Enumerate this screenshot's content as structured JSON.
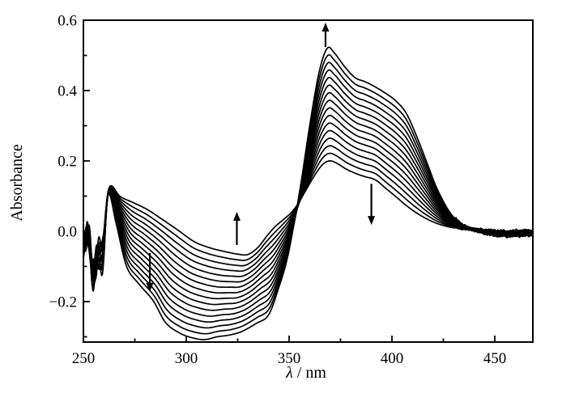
{
  "figure": {
    "background": "#ffffff",
    "line_color": "#000000",
    "kind": "uv-vis absorbance spectra family (time-evolution with arrows)"
  },
  "axes": {
    "x": {
      "label_symbol": "λ",
      "label_rest": " / nm",
      "min": 250,
      "max": 468.5,
      "major_ticks": [
        {
          "v": 250,
          "label": "250"
        },
        {
          "v": 300,
          "label": "300"
        },
        {
          "v": 350,
          "label": "350"
        },
        {
          "v": 400,
          "label": "400"
        },
        {
          "v": 450,
          "label": "450"
        }
      ],
      "minor_ticks": [
        275,
        325,
        375,
        425
      ]
    },
    "y": {
      "label": "Absorbance",
      "min": -0.315,
      "max": 0.6,
      "major_ticks": [
        {
          "v": 0.6,
          "label": "0.6"
        },
        {
          "v": 0.4,
          "label": "0.4"
        },
        {
          "v": 0.2,
          "label": "0.2"
        },
        {
          "v": 0.0,
          "label": "0.0"
        },
        {
          "v": -0.2,
          "label": "−0.2"
        }
      ],
      "minor_ticks": [
        0.5,
        0.3,
        0.1,
        -0.1,
        -0.3
      ]
    }
  },
  "chart_data": {
    "type": "line",
    "title": "",
    "xlabel": "λ / nm",
    "ylabel": "Absorbance",
    "xlim": [
      250,
      468.5
    ],
    "ylim": [
      -0.315,
      0.6
    ],
    "grid": false,
    "legend": false,
    "n_curves": 16,
    "series_model": {
      "description": "16 difference spectra; curve i (t=i/15) passes through key points whose (nm, A) values are linearly interpolated between first and last spectra, producing a slanted crossing zone near 338-352 nm",
      "key_points_first": [
        [
          250,
          -0.03
        ],
        [
          252.5,
          0.012
        ],
        [
          254.5,
          -0.088
        ],
        [
          257,
          -0.04
        ],
        [
          259.5,
          -0.02
        ],
        [
          262.5,
          0.124
        ],
        [
          268,
          0.098
        ],
        [
          274,
          0.082
        ],
        [
          281,
          0.062
        ],
        [
          288,
          0.035
        ],
        [
          296,
          0.003
        ],
        [
          304,
          -0.03
        ],
        [
          312,
          -0.048
        ],
        [
          319,
          -0.058
        ],
        [
          325,
          -0.065
        ],
        [
          330,
          -0.066
        ],
        [
          335,
          -0.045
        ],
        [
          339,
          -0.015
        ],
        [
          343,
          0.012
        ],
        [
          347,
          0.032
        ],
        [
          350.5,
          0.05
        ],
        [
          354,
          0.075
        ],
        [
          358,
          0.115
        ],
        [
          362,
          0.155
        ],
        [
          366,
          0.188
        ],
        [
          369.5,
          0.2
        ],
        [
          373,
          0.194
        ],
        [
          378,
          0.176
        ],
        [
          383,
          0.163
        ],
        [
          387,
          0.155
        ],
        [
          392,
          0.146
        ],
        [
          397,
          0.122
        ],
        [
          402,
          0.098
        ],
        [
          407,
          0.073
        ],
        [
          412,
          0.052
        ],
        [
          417,
          0.035
        ],
        [
          422,
          0.022
        ],
        [
          428,
          0.012
        ],
        [
          433,
          0.008
        ],
        [
          438,
          0.006
        ],
        [
          444,
          0.004
        ],
        [
          450,
          0.002
        ],
        [
          456,
          0
        ],
        [
          462,
          0.002
        ],
        [
          468.5,
          0.003
        ]
      ],
      "key_points_last": [
        [
          250,
          -0.06
        ],
        [
          252.5,
          -0.035
        ],
        [
          254.5,
          -0.15
        ],
        [
          257,
          -0.1
        ],
        [
          259.5,
          -0.105
        ],
        [
          262,
          0.103
        ],
        [
          266,
          0.02
        ],
        [
          271,
          -0.1
        ],
        [
          277,
          -0.15
        ],
        [
          284,
          -0.198
        ],
        [
          290,
          -0.26
        ],
        [
          297,
          -0.29
        ],
        [
          303,
          -0.303
        ],
        [
          309,
          -0.308
        ],
        [
          315,
          -0.3
        ],
        [
          321,
          -0.295
        ],
        [
          327,
          -0.285
        ],
        [
          334,
          -0.262
        ],
        [
          340,
          -0.238
        ],
        [
          345,
          -0.16
        ],
        [
          349,
          -0.08
        ],
        [
          352.5,
          0.025
        ],
        [
          356,
          0.145
        ],
        [
          360,
          0.3
        ],
        [
          364.5,
          0.45
        ],
        [
          368.5,
          0.52
        ],
        [
          372,
          0.507
        ],
        [
          377,
          0.468
        ],
        [
          382,
          0.437
        ],
        [
          387,
          0.425
        ],
        [
          392,
          0.41
        ],
        [
          397,
          0.392
        ],
        [
          402,
          0.37
        ],
        [
          407,
          0.335
        ],
        [
          412,
          0.27
        ],
        [
          417,
          0.195
        ],
        [
          422,
          0.12
        ],
        [
          428,
          0.055
        ],
        [
          433,
          0.025
        ],
        [
          438,
          0.008
        ],
        [
          444,
          -0.004
        ],
        [
          450,
          -0.012
        ],
        [
          456,
          -0.014
        ],
        [
          462,
          -0.013
        ],
        [
          468.5,
          -0.012
        ]
      ],
      "noise_windows": [
        {
          "range": [
            250,
            259.8
          ],
          "amplitude": 0.022,
          "fade_nm": 2
        },
        {
          "range": [
            431,
            468.5
          ],
          "amplitude": 0.005,
          "fade_nm": 3
        }
      ]
    },
    "peak_values_370nm": [
      0.2,
      0.221,
      0.243,
      0.264,
      0.285,
      0.307,
      0.328,
      0.349,
      0.371,
      0.392,
      0.413,
      0.435,
      0.456,
      0.477,
      0.499,
      0.52
    ],
    "features": {
      "growing_band_nm": 368,
      "growing_band_range": [
        0.2,
        0.52
      ],
      "shoulder_nm": 400,
      "bleach_minimum_nm_range": [
        309,
        327
      ],
      "bleach_range": [
        -0.067,
        -0.308
      ],
      "common_peak_nm": 262,
      "common_peak_abs": 0.12,
      "crossing_zone_nm": [
        338,
        352
      ],
      "baseline_tail_abs": 0.0
    },
    "arrows": [
      {
        "id": "up-arrow-368nm",
        "direction": "up",
        "x_nm": 367.7,
        "y_from": 0.524,
        "y_to": 0.593
      },
      {
        "id": "up-arrow-325nm",
        "direction": "up",
        "x_nm": 324.6,
        "y_from": -0.039,
        "y_to": 0.055
      },
      {
        "id": "down-arrow-282nm",
        "direction": "down",
        "x_nm": 282.3,
        "y_from": -0.062,
        "y_to": -0.172
      },
      {
        "id": "down-arrow-390nm",
        "direction": "down",
        "x_nm": 390.0,
        "y_from": 0.135,
        "y_to": 0.018
      }
    ]
  }
}
